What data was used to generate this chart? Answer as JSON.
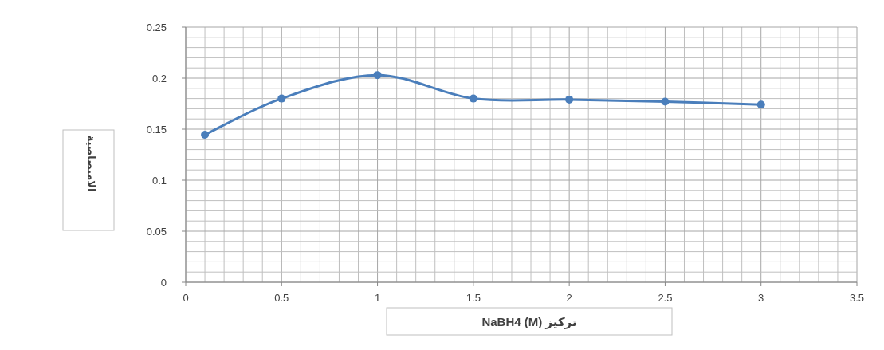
{
  "chart_data": {
    "type": "line",
    "xlabel": "تركيز NaBH4 (M)",
    "ylabel": "الامتصاصية",
    "x": [
      0.1,
      0.5,
      1,
      1.5,
      2,
      2.5,
      3
    ],
    "series": [
      {
        "color": "#4a7ebb",
        "values": [
          0.1445,
          0.18,
          0.203,
          0.18,
          0.179,
          0.177,
          0.174
        ]
      }
    ],
    "xlim": [
      0,
      3.5
    ],
    "xticks": [
      0,
      0.5,
      1,
      1.5,
      2,
      2.5,
      3,
      3.5
    ],
    "ylim": [
      0,
      0.25
    ],
    "yticks": [
      0,
      0.05,
      0.1,
      0.15,
      0.2,
      0.25
    ],
    "grid": true,
    "marker": "circle",
    "line_style": "solid"
  }
}
